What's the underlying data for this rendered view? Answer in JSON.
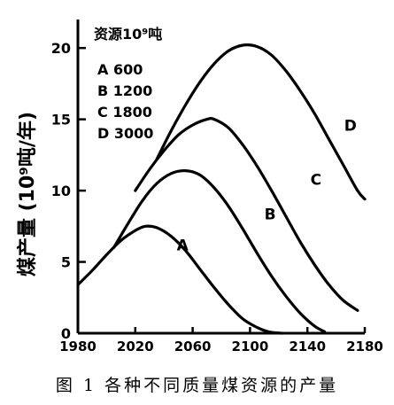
{
  "figure": {
    "caption": "图 1   各种不同质量煤资源的产量"
  },
  "chart_data": {
    "type": "line",
    "title": "",
    "xlabel": "",
    "ylabel": "煤产量 (10⁹吨/年)",
    "xlim": [
      1980,
      2180
    ],
    "ylim": [
      0,
      22
    ],
    "x_ticks": [
      1980,
      2020,
      2060,
      2100,
      2140,
      2180
    ],
    "x_tick_labels": [
      "1980",
      "2020",
      "2060",
      "2100",
      "2140",
      "2180"
    ],
    "y_ticks": [
      0,
      5,
      10,
      15,
      20
    ],
    "y_tick_labels": [
      "0",
      "5",
      "10",
      "15",
      "20"
    ],
    "grid": false,
    "legend": {
      "title": "资源10⁹吨",
      "placement": "top-left",
      "entries": [
        "A 600",
        "B 1200",
        "C 1800",
        "D 3000"
      ]
    },
    "series": [
      {
        "label": "A",
        "x": [
          1980,
          1990,
          2000,
          2010,
          2020,
          2027,
          2035,
          2045,
          2055,
          2065,
          2075,
          2085,
          2095,
          2105,
          2113,
          2122
        ],
        "y": [
          3.4,
          4.4,
          5.5,
          6.5,
          7.2,
          7.5,
          7.4,
          6.8,
          5.8,
          4.5,
          3.2,
          2.0,
          1.0,
          0.4,
          0.1,
          0.0
        ]
      },
      {
        "label": "B",
        "x": [
          2005,
          2015,
          2025,
          2035,
          2045,
          2055,
          2065,
          2075,
          2085,
          2095,
          2105,
          2115,
          2125,
          2135,
          2145,
          2152
        ],
        "y": [
          6.0,
          7.7,
          9.3,
          10.5,
          11.2,
          11.4,
          11.1,
          10.2,
          8.9,
          7.3,
          5.6,
          4.0,
          2.6,
          1.4,
          0.5,
          0.1
        ]
      },
      {
        "label": "C",
        "x": [
          2020,
          2030,
          2040,
          2050,
          2060,
          2070,
          2075,
          2085,
          2095,
          2105,
          2115,
          2125,
          2135,
          2145,
          2155,
          2165,
          2175
        ],
        "y": [
          10.0,
          11.5,
          12.8,
          13.9,
          14.6,
          15.0,
          15.0,
          14.4,
          13.2,
          11.7,
          10.0,
          8.2,
          6.4,
          4.8,
          3.4,
          2.3,
          1.6
        ]
      },
      {
        "label": "D",
        "x": [
          2035,
          2045,
          2055,
          2065,
          2075,
          2085,
          2095,
          2105,
          2115,
          2125,
          2135,
          2145,
          2155,
          2165,
          2175,
          2180
        ],
        "y": [
          12.2,
          14.2,
          16.0,
          17.6,
          18.9,
          19.8,
          20.2,
          20.1,
          19.5,
          18.4,
          17.0,
          15.4,
          13.6,
          11.8,
          10.0,
          9.4
        ]
      }
    ],
    "annotations": [
      {
        "text": "A",
        "x": 2053,
        "y": 5.8
      },
      {
        "text": "B",
        "x": 2114,
        "y": 8.0
      },
      {
        "text": "C",
        "x": 2146,
        "y": 10.4
      },
      {
        "text": "D",
        "x": 2170,
        "y": 14.2
      }
    ]
  }
}
